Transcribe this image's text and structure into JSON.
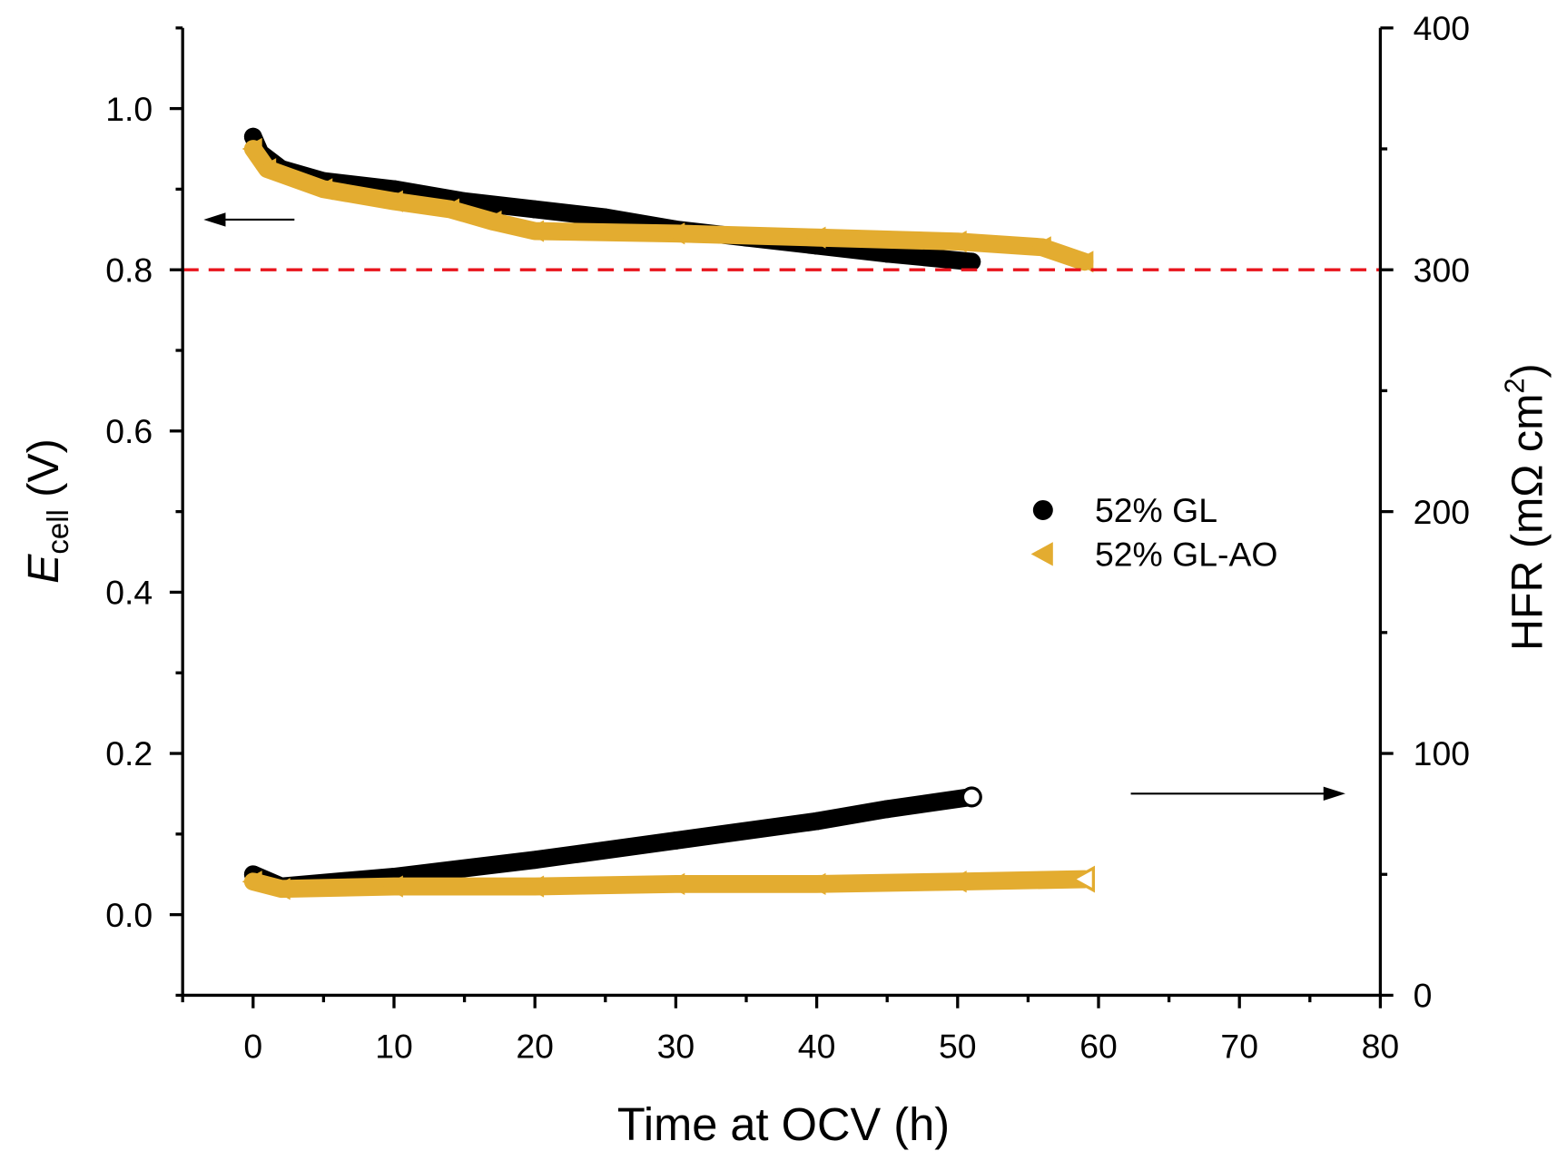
{
  "chart_data": {
    "type": "scatter",
    "xlabel": "Time at OCV (h)",
    "ylabel_main": "E",
    "ylabel_sub": "cell",
    "ylabel_unit": " (V)",
    "y2label": "HFR (mΩ cm",
    "y2label_sup": "2",
    "y2label_end": ")",
    "xlim": [
      -5,
      80
    ],
    "ylim": [
      -0.1,
      1.1
    ],
    "y2lim": [
      0,
      400
    ],
    "xticks": [
      0,
      10,
      20,
      30,
      40,
      50,
      60,
      70,
      80
    ],
    "xtick_labels": [
      "0",
      "10",
      "20",
      "30",
      "40",
      "50",
      "60",
      "70",
      "80"
    ],
    "yticks": [
      0.0,
      0.2,
      0.4,
      0.6,
      0.8,
      1.0
    ],
    "ytick_labels": [
      "0.0",
      "0.2",
      "0.4",
      "0.6",
      "0.8",
      "1.0"
    ],
    "y2ticks": [
      0,
      100,
      200,
      300,
      400
    ],
    "y2tick_labels": [
      "0",
      "100",
      "200",
      "300",
      "400"
    ],
    "reference_line": {
      "y": 0.8,
      "color": "#e8141c",
      "style": "dashed"
    },
    "legend": {
      "placement": "center-right",
      "entries": [
        "52% GL",
        "52% GL-AO"
      ]
    },
    "colors": {
      "gl": "#000000",
      "glao": "#e3ac30"
    },
    "series": [
      {
        "name": "52% GL",
        "axis": "left",
        "marker": "circle",
        "x": [
          0,
          0.5,
          2,
          5,
          10,
          15,
          20,
          25,
          30,
          35,
          40,
          45,
          51
        ],
        "y": [
          0.965,
          0.945,
          0.925,
          0.91,
          0.9,
          0.885,
          0.875,
          0.865,
          0.85,
          0.84,
          0.83,
          0.82,
          0.81
        ]
      },
      {
        "name": "52% GL-AO",
        "axis": "left",
        "marker": "triangle-left",
        "x": [
          0,
          1,
          5,
          10,
          14,
          17,
          20,
          30,
          40,
          50,
          56,
          59
        ],
        "y": [
          0.95,
          0.925,
          0.9,
          0.885,
          0.875,
          0.86,
          0.848,
          0.845,
          0.84,
          0.835,
          0.828,
          0.81
        ]
      },
      {
        "name": "52% GL",
        "axis": "right",
        "marker": "circle",
        "x": [
          0,
          2,
          10,
          20,
          30,
          40,
          45,
          51
        ],
        "y": [
          50,
          45,
          49,
          56,
          64,
          72,
          77,
          82
        ]
      },
      {
        "name": "52% GL-AO",
        "axis": "right",
        "marker": "triangle-left",
        "x": [
          0,
          2,
          10,
          20,
          30,
          40,
          50,
          59
        ],
        "y": [
          47,
          44,
          45,
          45,
          46,
          46,
          47,
          48
        ]
      }
    ]
  }
}
